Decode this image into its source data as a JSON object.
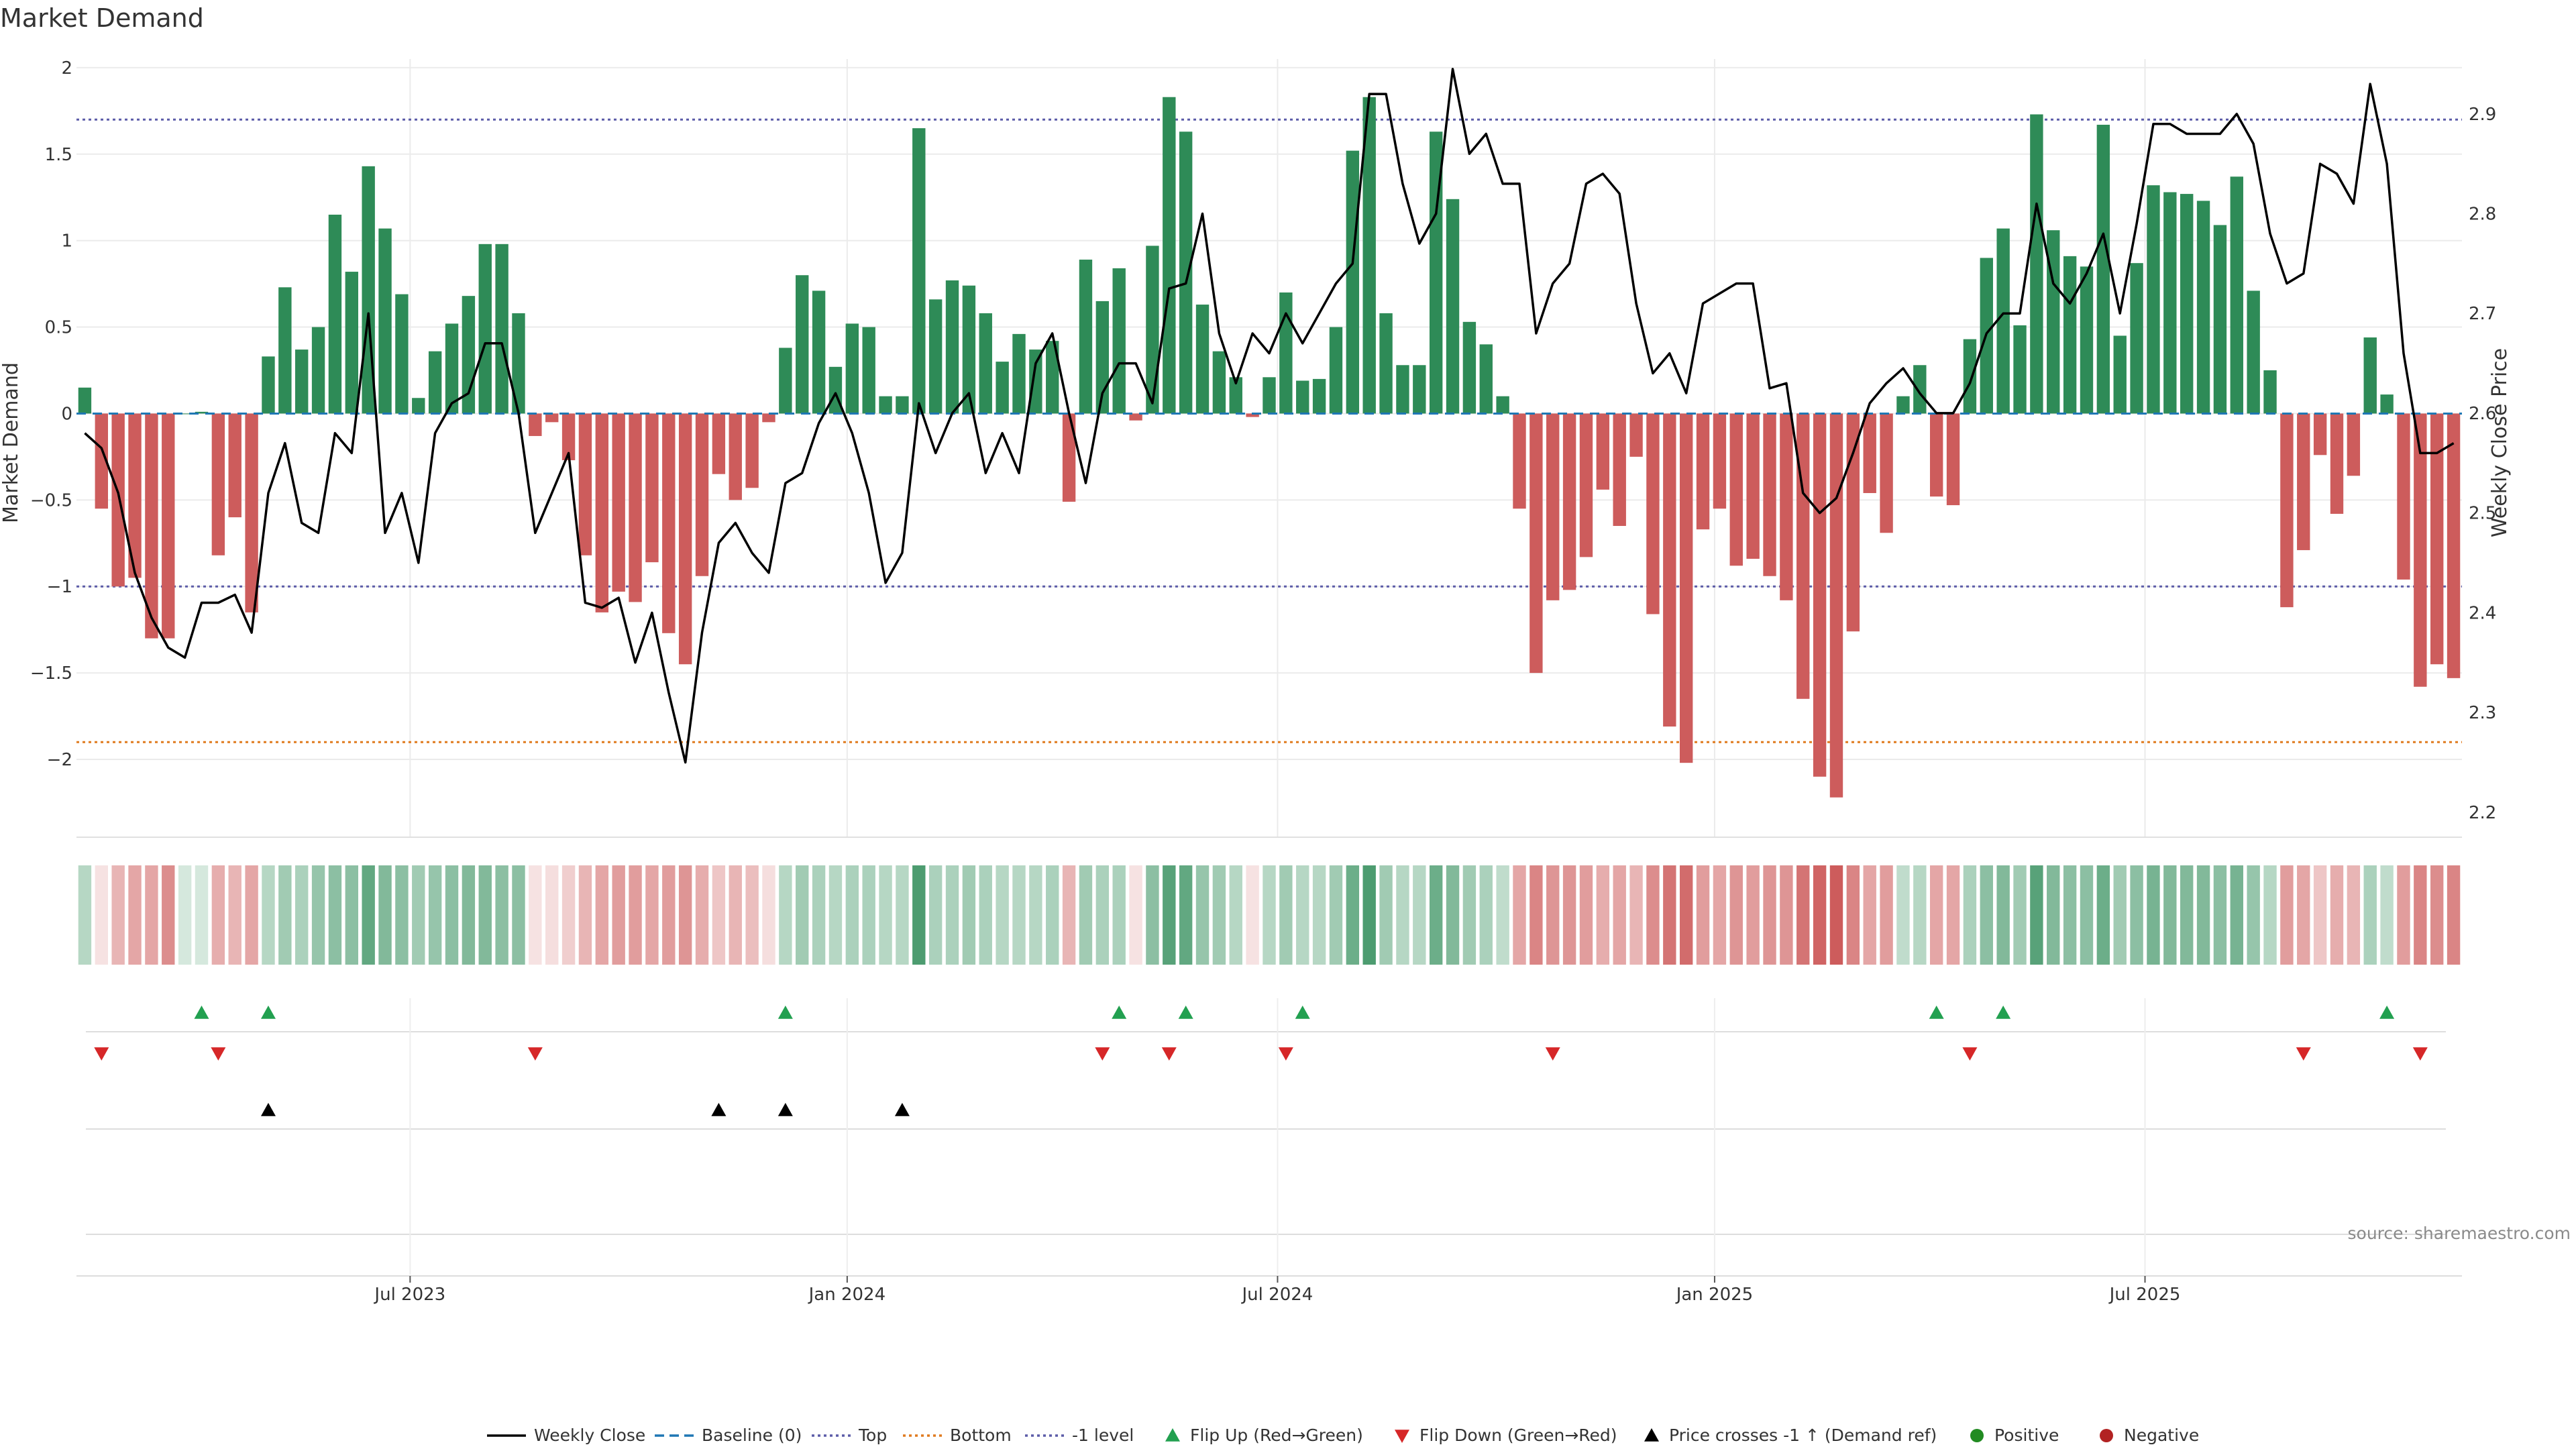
{
  "chart_data": {
    "type": "bar",
    "title": "Market Demand",
    "ylabel": "Market Demand",
    "y2label": "Weekly Close Price",
    "ylim": [
      -2.45,
      2.05
    ],
    "y_ticks": [
      2,
      1.5,
      1,
      0.5,
      0,
      -0.5,
      -1,
      -1.5,
      -2
    ],
    "y_tick_labels": [
      "2",
      "1.5",
      "1",
      "0.5",
      "0",
      "−0.5",
      "−1",
      "−1.5",
      "−2"
    ],
    "y2lim": [
      2.175,
      2.955
    ],
    "y2_ticks": [
      2.9,
      2.8,
      2.7,
      2.6,
      2.5,
      2.4,
      2.3,
      2.2
    ],
    "y2_tick_labels": [
      "2.9",
      "2.8",
      "2.7",
      "2.6",
      "2.5",
      "2.4",
      "2.3",
      "2.2"
    ],
    "x_tick_labels": [
      "Jul 2023",
      "Jan 2024",
      "Jul 2024",
      "Jan 2025",
      "Jul 2025"
    ],
    "x_tick_weeks": [
      20,
      46.2,
      72,
      98.2,
      124
    ],
    "n_weeks": 143,
    "reference_lines": {
      "top": 1.7,
      "bottom": -1.9,
      "minus_one": -1.0
    },
    "demand": [
      0.15,
      -0.55,
      -1.0,
      -0.95,
      -1.3,
      -1.3,
      0.0,
      0.01,
      -0.82,
      -0.6,
      -1.15,
      0.33,
      0.73,
      0.37,
      0.5,
      1.15,
      0.82,
      1.43,
      1.07,
      0.69,
      0.09,
      0.36,
      0.52,
      0.68,
      0.98,
      0.98,
      0.58,
      -0.13,
      -0.05,
      -0.27,
      -0.82,
      -1.15,
      -1.03,
      -1.09,
      -0.86,
      -1.27,
      -1.45,
      -0.94,
      -0.35,
      -0.5,
      -0.43,
      -0.05,
      0.38,
      0.8,
      0.71,
      0.27,
      0.52,
      0.5,
      0.1,
      0.1,
      1.65,
      0.66,
      0.77,
      0.74,
      0.58,
      0.3,
      0.46,
      0.37,
      0.42,
      -0.51,
      0.89,
      0.65,
      0.84,
      -0.04,
      0.97,
      1.83,
      1.63,
      0.63,
      0.36,
      0.21,
      -0.02,
      0.21,
      0.7,
      0.19,
      0.2,
      0.5,
      1.52,
      1.83,
      0.58,
      0.28,
      0.28,
      1.63,
      1.24,
      0.53,
      0.4,
      0.1,
      -0.55,
      -1.5,
      -1.08,
      -1.02,
      -0.83,
      -0.44,
      -0.65,
      -0.25,
      -1.16,
      -1.81,
      -2.02,
      -0.67,
      -0.55,
      -0.88,
      -0.84,
      -0.94,
      -1.08,
      -1.65,
      -2.1,
      -2.22,
      -1.26,
      -0.46,
      -0.69,
      0.1,
      0.28,
      -0.48,
      -0.53,
      0.43,
      0.9,
      1.07,
      0.51,
      1.73,
      1.06,
      0.91,
      0.85,
      1.67,
      0.45,
      0.87,
      1.32,
      1.28,
      1.27,
      1.23,
      1.09,
      1.37,
      0.71,
      0.25,
      -1.12,
      -0.79,
      -0.24,
      -0.58,
      -0.36,
      0.44,
      0.11,
      -0.96,
      -1.58,
      -1.45,
      -1.53
    ],
    "price": [
      2.58,
      2.565,
      2.52,
      2.44,
      2.395,
      2.365,
      2.355,
      2.41,
      2.41,
      2.418,
      2.38,
      2.52,
      2.57,
      2.49,
      2.48,
      2.58,
      2.56,
      2.7,
      2.48,
      2.52,
      2.45,
      2.58,
      2.61,
      2.62,
      2.67,
      2.67,
      2.6,
      2.48,
      2.52,
      2.56,
      2.41,
      2.405,
      2.415,
      2.35,
      2.4,
      2.32,
      2.25,
      2.38,
      2.47,
      2.49,
      2.46,
      2.44,
      2.53,
      2.54,
      2.59,
      2.62,
      2.58,
      2.52,
      2.43,
      2.46,
      2.61,
      2.56,
      2.6,
      2.62,
      2.54,
      2.58,
      2.54,
      2.65,
      2.68,
      2.6,
      2.53,
      2.62,
      2.65,
      2.65,
      2.61,
      2.725,
      2.73,
      2.8,
      2.68,
      2.63,
      2.68,
      2.66,
      2.7,
      2.67,
      2.7,
      2.73,
      2.75,
      2.92,
      2.92,
      2.83,
      2.77,
      2.8,
      2.945,
      2.86,
      2.88,
      2.83,
      2.83,
      2.68,
      2.73,
      2.75,
      2.83,
      2.84,
      2.82,
      2.71,
      2.64,
      2.66,
      2.62,
      2.71,
      2.72,
      2.73,
      2.73,
      2.625,
      2.63,
      2.52,
      2.5,
      2.515,
      2.56,
      2.61,
      2.63,
      2.645,
      2.62,
      2.6,
      2.6,
      2.63,
      2.68,
      2.7,
      2.7,
      2.81,
      2.73,
      2.71,
      2.74,
      2.78,
      2.7,
      2.79,
      2.89,
      2.89,
      2.88,
      2.88,
      2.88,
      2.9,
      2.87,
      2.78,
      2.73,
      2.74,
      2.85,
      2.84,
      2.81,
      2.93,
      2.85,
      2.66,
      2.56,
      2.56,
      2.57
    ],
    "shade_alpha": [
      0.35,
      0.18,
      0.45,
      0.55,
      0.55,
      0.7,
      0.2,
      0.2,
      0.5,
      0.45,
      0.55,
      0.35,
      0.45,
      0.4,
      0.5,
      0.55,
      0.55,
      0.75,
      0.6,
      0.55,
      0.45,
      0.5,
      0.55,
      0.6,
      0.6,
      0.55,
      0.55,
      0.18,
      0.2,
      0.3,
      0.45,
      0.55,
      0.6,
      0.6,
      0.55,
      0.6,
      0.65,
      0.5,
      0.35,
      0.45,
      0.4,
      0.2,
      0.35,
      0.45,
      0.4,
      0.35,
      0.4,
      0.4,
      0.35,
      0.35,
      0.85,
      0.4,
      0.4,
      0.45,
      0.4,
      0.35,
      0.35,
      0.35,
      0.4,
      0.45,
      0.45,
      0.4,
      0.4,
      0.18,
      0.55,
      0.8,
      0.75,
      0.5,
      0.45,
      0.35,
      0.18,
      0.35,
      0.45,
      0.35,
      0.35,
      0.45,
      0.7,
      0.85,
      0.45,
      0.35,
      0.35,
      0.7,
      0.6,
      0.45,
      0.4,
      0.3,
      0.55,
      0.75,
      0.65,
      0.65,
      0.6,
      0.5,
      0.55,
      0.45,
      0.7,
      0.85,
      0.9,
      0.6,
      0.55,
      0.65,
      0.6,
      0.65,
      0.65,
      0.85,
      0.95,
      1.0,
      0.75,
      0.55,
      0.6,
      0.3,
      0.35,
      0.55,
      0.55,
      0.4,
      0.55,
      0.6,
      0.45,
      0.8,
      0.6,
      0.55,
      0.55,
      0.7,
      0.45,
      0.55,
      0.65,
      0.6,
      0.6,
      0.6,
      0.55,
      0.65,
      0.5,
      0.35,
      0.6,
      0.55,
      0.35,
      0.5,
      0.45,
      0.4,
      0.3,
      0.6,
      0.75,
      0.7,
      0.75
    ],
    "flip_up_weeks": [
      7,
      11,
      42,
      62,
      66,
      73,
      111,
      115,
      138
    ],
    "flip_down_weeks": [
      1,
      8,
      27,
      61,
      65,
      72,
      88,
      113,
      133,
      140
    ],
    "price_cross_weeks": [
      11,
      38,
      42,
      49
    ],
    "legend": [
      "Weekly Close",
      "Baseline (0)",
      "Top",
      "Bottom",
      "-1 level",
      "Flip Up (Red→Green)",
      "Flip Down (Green→Red)",
      "Price crosses -1 ↑ (Demand ref)",
      "Positive",
      "Negative"
    ],
    "colors": {
      "positive": "#2e8b57",
      "negative": "#cd5c5c",
      "price": "#000000",
      "baseline": "#1f77b4",
      "top": "#5c5ca8",
      "bottom": "#e07b1f",
      "minus_one": "#5c5ca8",
      "flip_up": "#22a050",
      "flip_down": "#d62728",
      "cross": "#000000",
      "pos_marker": "#228b22",
      "neg_marker": "#b22222"
    }
  },
  "source_text": "source: sharemaestro.com"
}
